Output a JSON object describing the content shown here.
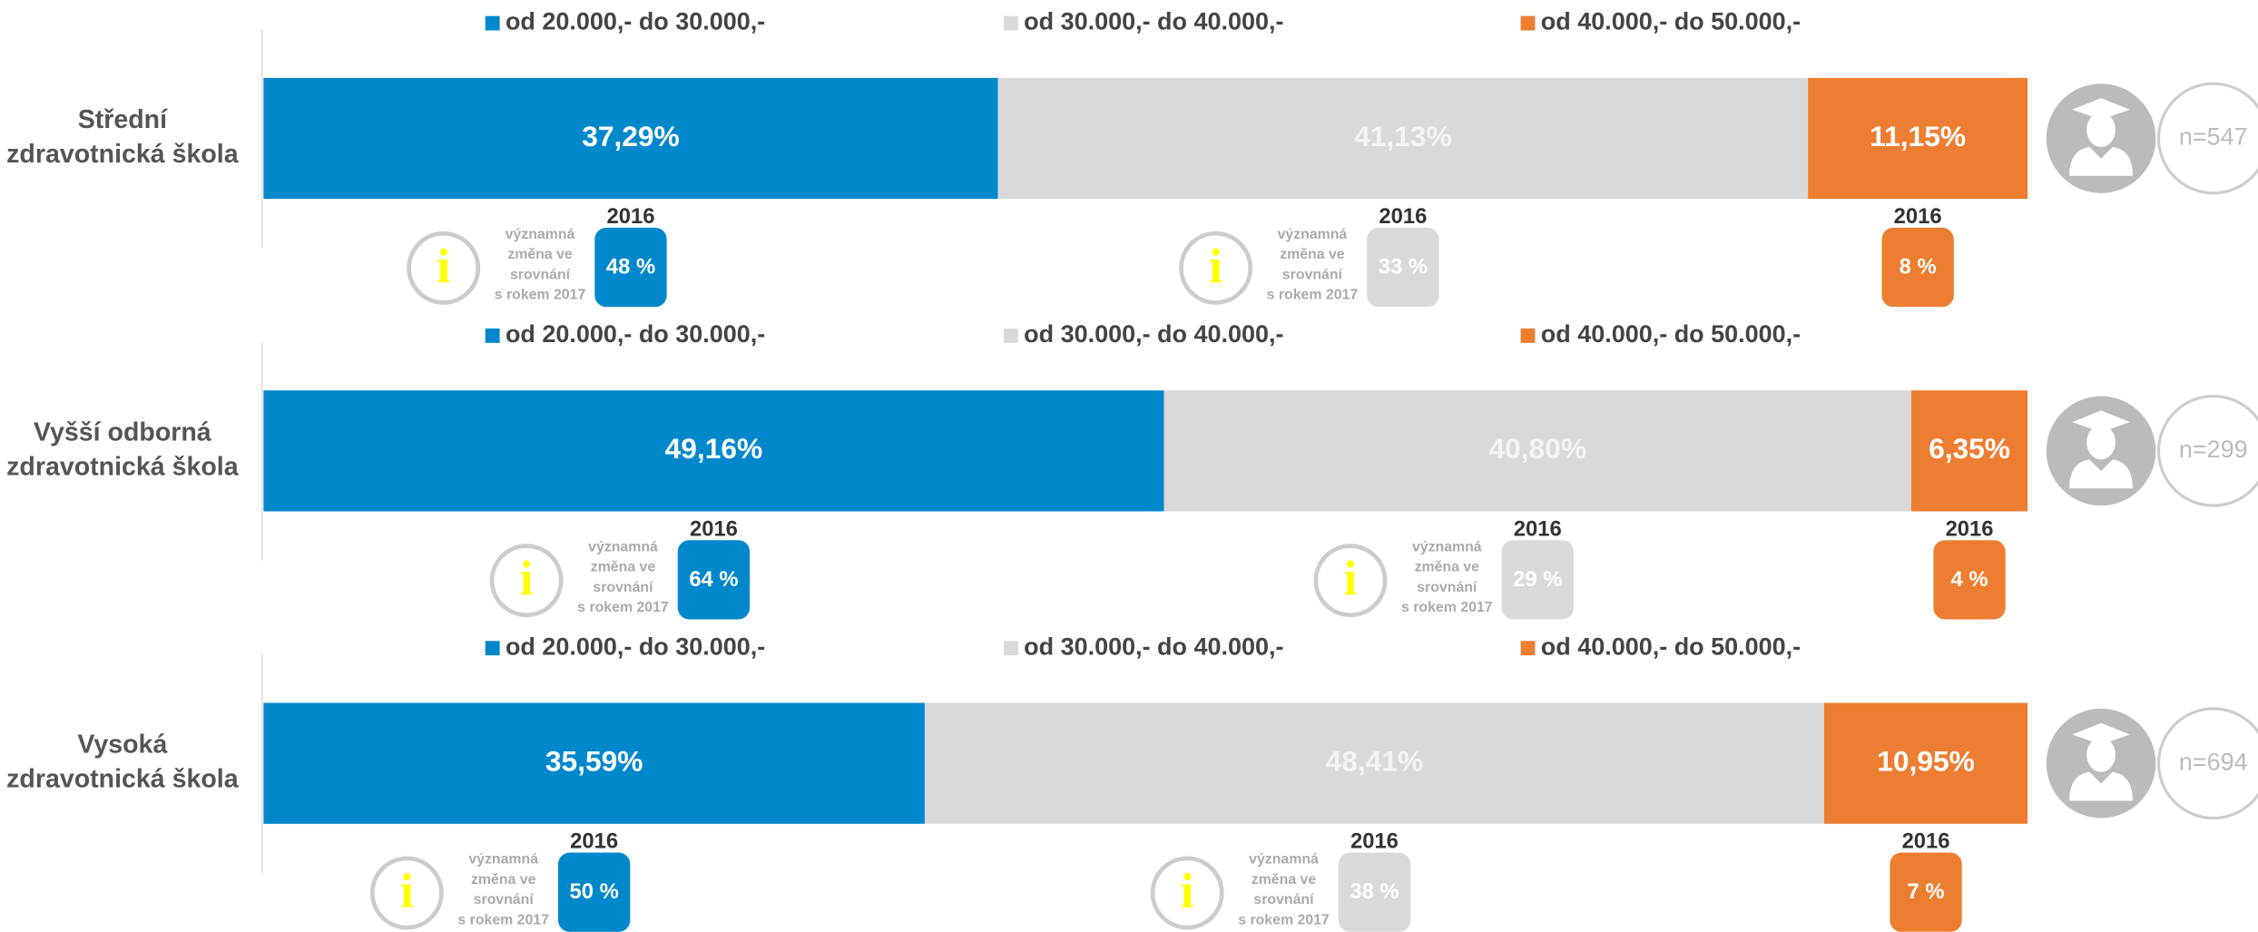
{
  "chart_data": {
    "type": "bar",
    "orientation": "horizontal",
    "stacked": true,
    "categories": [
      [
        "Střední",
        "zdravotnická škola"
      ],
      [
        "Vyšší odborná",
        "zdravotnická škola"
      ],
      [
        "Vysoká",
        "zdravotnická škola"
      ]
    ],
    "series": [
      {
        "name": "od 20.000,- do 30.000,-",
        "color": "#0088cc",
        "label_color": "#ffffff",
        "values": [
          37.29,
          49.16,
          35.59
        ],
        "value_labels": [
          "37,29%",
          "49,16%",
          "35,59%"
        ],
        "previous_values": [
          48,
          64,
          50
        ],
        "previous_labels": [
          "48 %",
          "64 %",
          "50 %"
        ]
      },
      {
        "name": "od 30.000,- do 40.000,-",
        "color": "#d9d9d9",
        "label_color": "#f4f4f4",
        "values": [
          41.13,
          40.8,
          48.41
        ],
        "value_labels": [
          "41,13%",
          "40,80%",
          "48,41%"
        ],
        "previous_values": [
          33,
          29,
          38
        ],
        "previous_labels": [
          "33 %",
          "29 %",
          "38 %"
        ]
      },
      {
        "name": "od 40.000,- do 50.000,-",
        "color": "#ed7d31",
        "label_color": "#ffffff",
        "values": [
          11.15,
          6.35,
          10.95
        ],
        "value_labels": [
          "11,15%",
          "6,35%",
          "10,95%"
        ],
        "previous_values": [
          8,
          4,
          7
        ],
        "previous_labels": [
          "8 %",
          "4 %",
          "7 %"
        ]
      }
    ],
    "previous_label": "2016",
    "note": [
      "významná",
      "změna ve",
      "srovnání",
      "s rokem 2017"
    ],
    "n": [
      547,
      299,
      694
    ],
    "n_labels": [
      "n=547",
      "n=299",
      "n=694"
    ]
  }
}
